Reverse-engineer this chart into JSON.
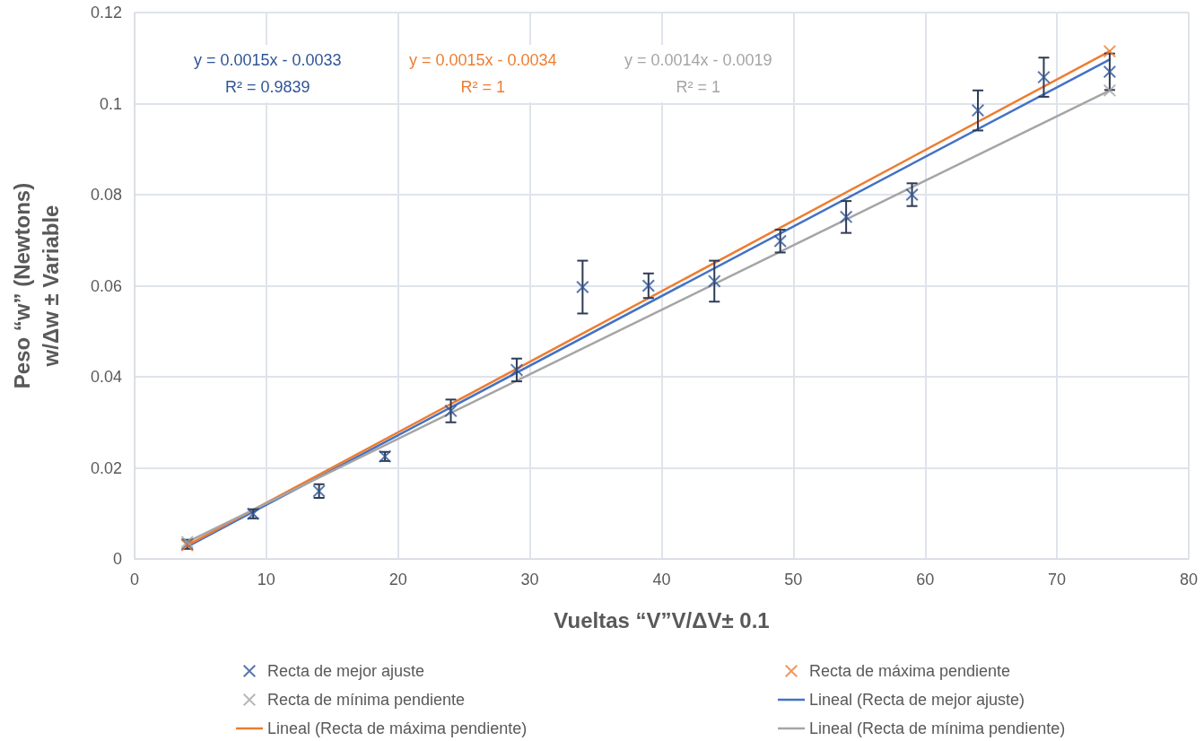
{
  "chart_data": {
    "type": "scatter",
    "xlabel": "Vueltas “V”V/ΔV± 0.1",
    "ylabel": "Peso “w” (Newtons)\nw/Δw ± Variable",
    "xlim": [
      0,
      80
    ],
    "xticks": [
      0,
      10,
      20,
      30,
      40,
      50,
      60,
      70,
      80
    ],
    "ylim": [
      0,
      0.12
    ],
    "yticks": [
      0,
      0.02,
      0.04,
      0.06,
      0.08,
      0.1,
      0.12
    ],
    "grid": true,
    "legend": "bottom",
    "marker": "cross",
    "annotations": [
      "y = 0.0015x - 0.0033\nR² = 0.9839",
      "y = 0.0015x - 0.0034\nR² = 1",
      "y = 0.0014x - 0.0019\nR² = 1"
    ],
    "series": [
      {
        "name": "Recta de mejor ajuste",
        "color": "#2f5597",
        "x": [
          4,
          9,
          14,
          19,
          24,
          29,
          34,
          39,
          44,
          49,
          54,
          59,
          64,
          69,
          74
        ],
        "values": [
          0.0032,
          0.0099,
          0.0149,
          0.0225,
          0.0325,
          0.0415,
          0.0597,
          0.06,
          0.061,
          0.0698,
          0.0751,
          0.08,
          0.0985,
          0.1058,
          0.107
        ],
        "errors": [
          0.001,
          0.001,
          0.0015,
          0.001,
          0.0025,
          0.0025,
          0.0058,
          0.0027,
          0.0045,
          0.0025,
          0.0035,
          0.0025,
          0.0044,
          0.0043,
          0.004
        ]
      },
      {
        "name": "Recta de máxima pendiente",
        "color": "#ed7d31",
        "x": [
          4,
          74
        ],
        "values": [
          0.003,
          0.1115
        ]
      },
      {
        "name": "Recta de mínima pendiente",
        "color": "#a5a5a5",
        "x": [
          4,
          74
        ],
        "values": [
          0.0037,
          0.1029
        ]
      },
      {
        "name": "Lineal (Recta de mejor ajuste)",
        "type": "line",
        "marker": "none",
        "color": "#4472c4",
        "x": [
          4,
          74
        ],
        "values": [
          0.0027,
          0.1097
        ]
      },
      {
        "name": "Lineal (Recta de máxima pendiente)",
        "type": "line",
        "marker": "none",
        "color": "#ed7d31",
        "x": [
          4,
          74
        ],
        "values": [
          0.003,
          0.1115
        ]
      },
      {
        "name": "Lineal (Recta de mínima pendiente)",
        "type": "line",
        "marker": "none",
        "color": "#a5a5a5",
        "x": [
          4,
          74
        ],
        "values": [
          0.0037,
          0.1029
        ]
      }
    ]
  }
}
